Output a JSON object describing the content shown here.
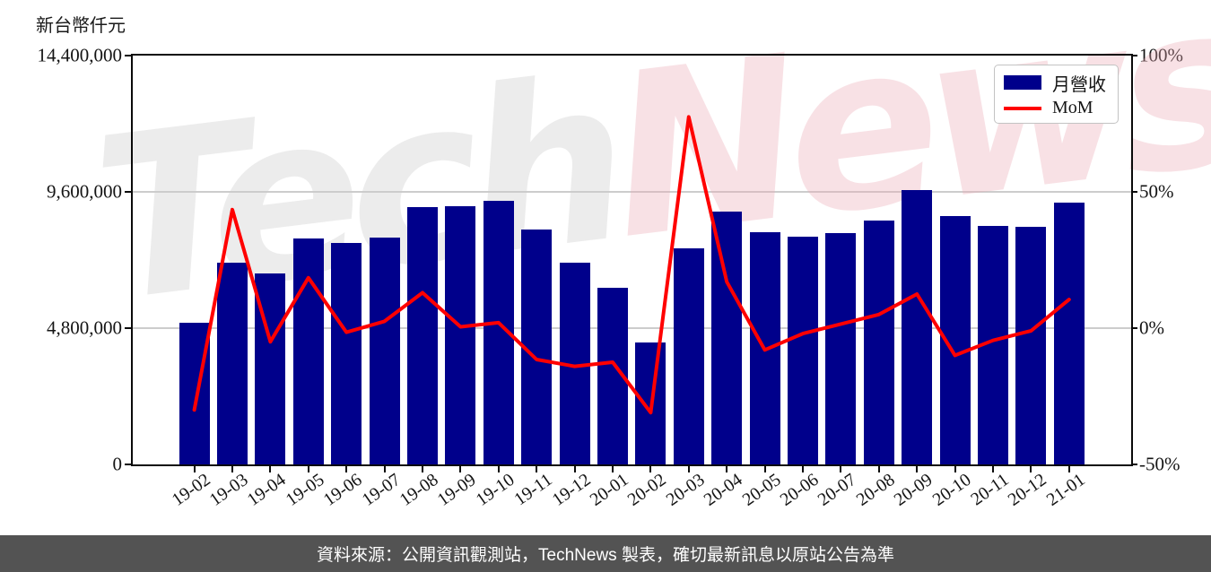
{
  "header": {
    "unit_label": "新台幣仟元"
  },
  "legend": {
    "items": [
      {
        "label": "月營收",
        "swatch": "bar",
        "color": "#00008B"
      },
      {
        "label": "MoM",
        "swatch": "line",
        "color": "#FF0000"
      }
    ]
  },
  "watermark": {
    "part1": "Tech",
    "part2": "News"
  },
  "footer": {
    "text": "資料來源：公開資訊觀測站，TechNews 製表，確切最新訊息以原站公告為準",
    "background": "#535353"
  },
  "chart_data": {
    "type": "combo",
    "categories": [
      "19-02",
      "19-03",
      "19-04",
      "19-05",
      "19-06",
      "19-07",
      "19-08",
      "19-09",
      "19-10",
      "19-11",
      "19-12",
      "20-01",
      "20-02",
      "20-03",
      "20-04",
      "20-05",
      "20-06",
      "20-07",
      "20-08",
      "20-09",
      "20-10",
      "20-11",
      "20-12",
      "21-01"
    ],
    "series": [
      {
        "name": "月營收",
        "type": "bar",
        "axis": "left",
        "unit": "新台幣仟元",
        "color": "#00008B",
        "values": [
          4980000,
          7110000,
          6740000,
          7960000,
          7810000,
          8000000,
          9070000,
          9110000,
          9290000,
          8260000,
          7110000,
          6220000,
          4290000,
          7600000,
          8920000,
          8180000,
          8030000,
          8160000,
          8590000,
          9650000,
          8740000,
          8390000,
          8360000,
          9230000
        ]
      },
      {
        "name": "MoM",
        "type": "line",
        "axis": "right",
        "unit": "%",
        "color": "#FF0000",
        "values": [
          -30,
          43.5,
          -5,
          18.5,
          -1.5,
          2.5,
          13,
          0.5,
          2,
          -11.5,
          -14,
          -12.5,
          -31,
          77.5,
          17,
          -8,
          -2,
          1.5,
          5,
          12.5,
          -10,
          -4.5,
          -1,
          10.5
        ]
      }
    ],
    "left_axis": {
      "label": "新台幣仟元",
      "tick_labels": [
        "14,400,000",
        "9,600,000",
        "4,800,000",
        "0"
      ],
      "min": 0,
      "max": 14400000
    },
    "right_axis": {
      "tick_labels": [
        "100%",
        "50%",
        "0%",
        "-50%"
      ],
      "min": -50,
      "max": 100
    },
    "grid": "horizontal",
    "legend_position": "top-right",
    "title": ""
  }
}
